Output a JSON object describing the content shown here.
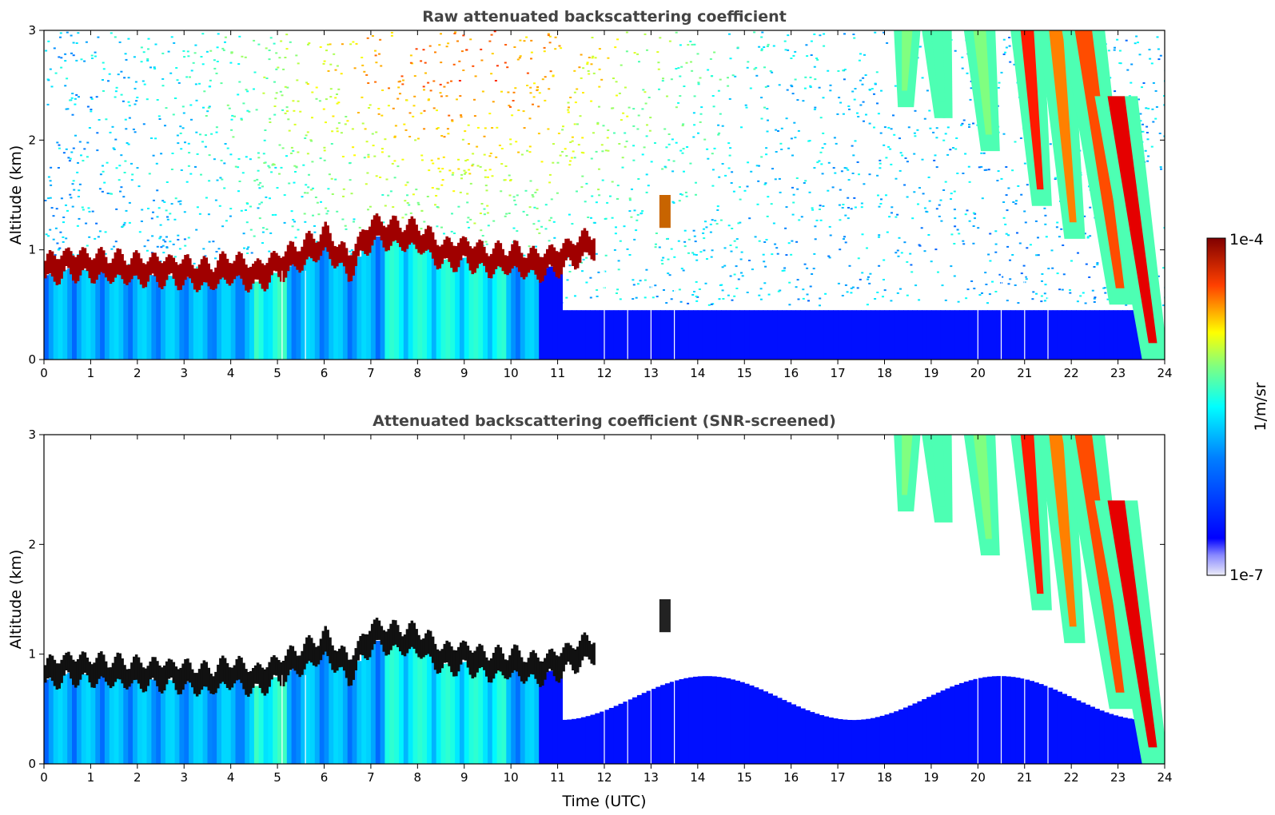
{
  "chart_data": [
    {
      "type": "heatmap",
      "title": "Raw attenuated backscattering coefficient",
      "ylabel": "Altitude (km)",
      "xlabel": "",
      "xlim": [
        0,
        24
      ],
      "ylim": [
        0,
        3
      ],
      "xticks": [
        "0",
        "1",
        "2",
        "3",
        "4",
        "5",
        "6",
        "7",
        "8",
        "9",
        "10",
        "11",
        "12",
        "13",
        "14",
        "15",
        "16",
        "17",
        "18",
        "19",
        "20",
        "21",
        "22",
        "23",
        "24"
      ],
      "yticks": [
        "0",
        "1",
        "2",
        "3"
      ],
      "noise_background": true,
      "cloud_base_layer": {
        "time_utc": [
          0,
          0.5,
          1,
          1.5,
          2,
          2.5,
          3,
          3.5,
          4,
          4.5,
          5,
          5.5,
          6,
          6.5,
          7,
          7.5,
          8,
          8.5,
          9,
          9.5,
          10,
          10.5,
          11,
          11.5,
          12
        ],
        "altitude_km": [
          0.82,
          0.88,
          0.86,
          0.84,
          0.82,
          0.82,
          0.8,
          0.76,
          0.84,
          0.76,
          0.86,
          0.96,
          1.08,
          0.86,
          1.18,
          1.14,
          1.12,
          0.96,
          0.98,
          0.9,
          0.92,
          0.86,
          0.92,
          1.02,
          1.1
        ]
      },
      "isolated_feature": {
        "time_utc": 13.3,
        "altitude_km": [
          1.2,
          1.5
        ]
      },
      "precipitation_streaks": [
        {
          "start_time": 18.2,
          "top_km": 3.0,
          "end_time": 18.4,
          "bottom_km": 2.3,
          "intensity": 0.5
        },
        {
          "start_time": 18.8,
          "top_km": 3.0,
          "end_time": 19.2,
          "bottom_km": 2.2,
          "intensity": 0.45
        },
        {
          "start_time": 19.7,
          "top_km": 3.0,
          "end_time": 20.2,
          "bottom_km": 1.9,
          "intensity": 0.5
        },
        {
          "start_time": 20.7,
          "top_km": 3.0,
          "end_time": 21.3,
          "bottom_km": 1.4,
          "intensity": 0.85
        },
        {
          "start_time": 21.3,
          "top_km": 3.0,
          "end_time": 22.0,
          "bottom_km": 1.1,
          "intensity": 0.75
        },
        {
          "start_time": 21.8,
          "top_km": 3.0,
          "end_time": 23.0,
          "bottom_km": 0.5,
          "intensity": 0.8
        },
        {
          "start_time": 22.5,
          "top_km": 2.4,
          "end_time": 23.7,
          "bottom_km": 0.0,
          "intensity": 0.9
        }
      ],
      "data_gaps_utc": [
        5.1,
        5.6,
        12.0,
        12.5,
        13.0,
        13.5,
        20.0,
        20.5,
        21.0,
        21.5
      ]
    },
    {
      "type": "heatmap",
      "title": "Attenuated backscattering coefficient (SNR-screened)",
      "ylabel": "Altitude (km)",
      "xlabel": "Time (UTC)",
      "xlim": [
        0,
        24
      ],
      "ylim": [
        0,
        3
      ],
      "xticks": [
        "0",
        "1",
        "2",
        "3",
        "4",
        "5",
        "6",
        "7",
        "8",
        "9",
        "10",
        "11",
        "12",
        "13",
        "14",
        "15",
        "16",
        "17",
        "18",
        "19",
        "20",
        "21",
        "22",
        "23",
        "24"
      ],
      "yticks": [
        "0",
        "1",
        "2",
        "3"
      ],
      "noise_background": false,
      "data_gaps_utc": [
        5.1,
        5.6,
        12.0,
        12.5,
        13.0,
        13.5,
        20.0,
        20.5,
        21.0,
        21.5
      ]
    }
  ],
  "colorbar": {
    "label": "1/m/sr",
    "max_label": "1e-4",
    "min_label": "1e-7",
    "colormap": "jet",
    "colors": [
      "#e8e8f8",
      "#0000ff",
      "#00ffff",
      "#ffff00",
      "#ff0000",
      "#800000"
    ]
  }
}
